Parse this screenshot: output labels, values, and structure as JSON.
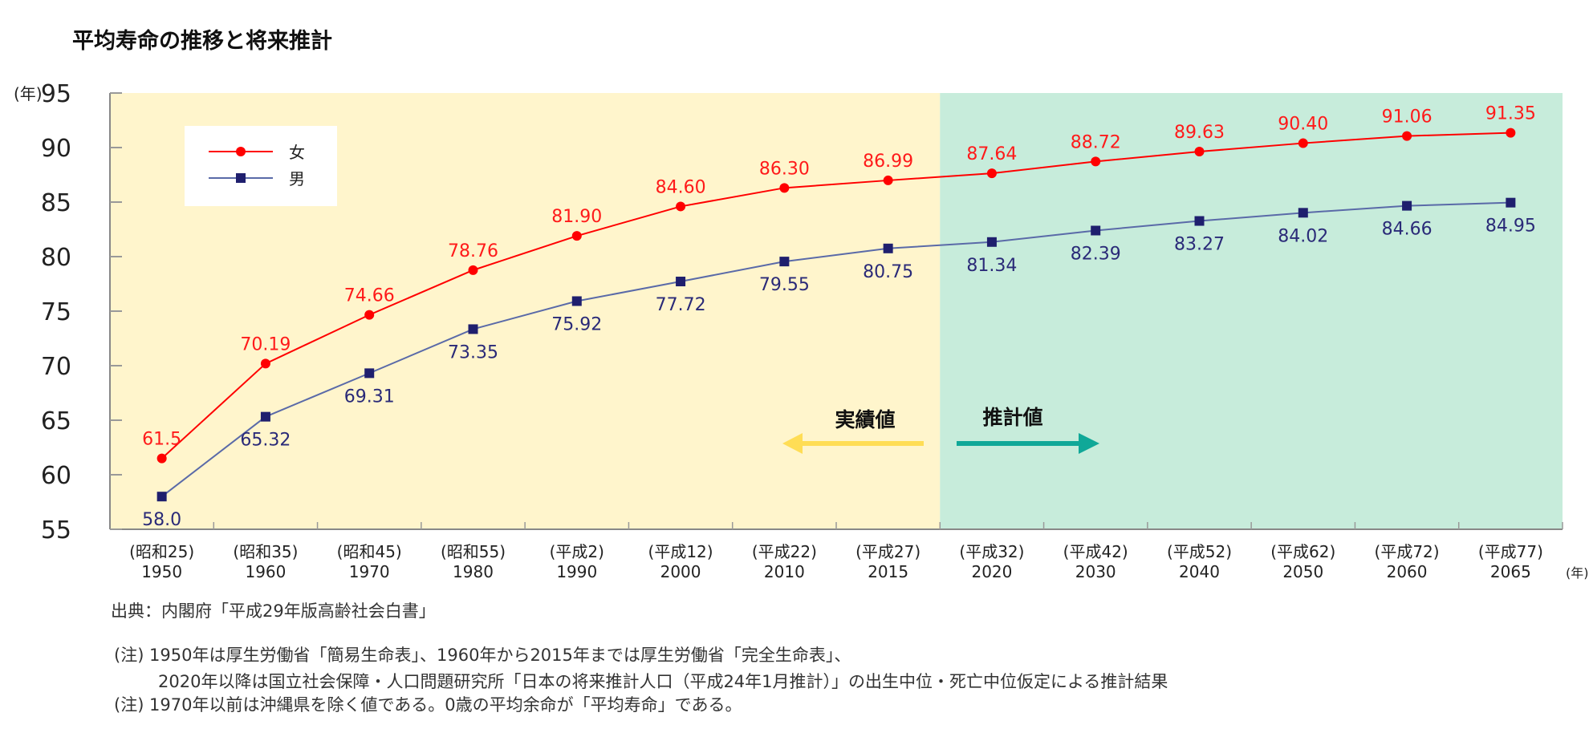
{
  "title": "平均寿命の推移と将来推計",
  "chart_data": {
    "type": "line",
    "title": "平均寿命の推移と将来推計",
    "ylabel": "(年)",
    "xlabel": "(年)",
    "ylim": [
      55,
      95
    ],
    "yticks": [
      "55",
      "60",
      "65",
      "70",
      "75",
      "80",
      "85",
      "90",
      "95"
    ],
    "categories": [
      "1950",
      "1960",
      "1970",
      "1980",
      "1990",
      "2000",
      "2010",
      "2015",
      "2020",
      "2030",
      "2040",
      "2050",
      "2060",
      "2065"
    ],
    "era_labels": [
      "(昭和25)",
      "(昭和35)",
      "(昭和45)",
      "(昭和55)",
      "(平成2)",
      "(平成12)",
      "(平成22)",
      "(平成27)",
      "(平成32)",
      "(平成42)",
      "(平成52)",
      "(平成62)",
      "(平成72)",
      "(平成77)"
    ],
    "legend_position": "top-left",
    "series": [
      {
        "name": "女",
        "color": "#ff0000",
        "marker": "circle",
        "values": [
          61.5,
          70.19,
          74.66,
          78.76,
          81.9,
          84.6,
          86.3,
          86.99,
          87.64,
          88.72,
          89.63,
          90.4,
          91.06,
          91.35
        ],
        "labels": [
          "61.5",
          "70.19",
          "74.66",
          "78.76",
          "81.90",
          "84.60",
          "86.30",
          "86.99",
          "87.64",
          "88.72",
          "89.63",
          "90.40",
          "91.06",
          "91.35"
        ]
      },
      {
        "name": "男",
        "color": "#1f1f6e",
        "line_color": "#5a6aa8",
        "marker": "square",
        "values": [
          58.0,
          65.32,
          69.31,
          73.35,
          75.92,
          77.72,
          79.55,
          80.75,
          81.34,
          82.39,
          83.27,
          84.02,
          84.66,
          84.95
        ],
        "labels": [
          "58.0",
          "65.32",
          "69.31",
          "73.35",
          "75.92",
          "77.72",
          "79.55",
          "80.75",
          "81.34",
          "82.39",
          "83.27",
          "84.02",
          "84.66",
          "84.95"
        ]
      }
    ],
    "regions": [
      {
        "label": "実績値",
        "color": "#fff5cc",
        "arrow_color": "#ffdd55",
        "direction": "left",
        "range": [
          "1950",
          "2015"
        ]
      },
      {
        "label": "推計値",
        "color": "#c7ecdb",
        "arrow_color": "#10a898",
        "direction": "right",
        "range": [
          "2020",
          "2065"
        ]
      }
    ],
    "grid": false
  },
  "source": "出典：内閣府「平成29年版高齢社会白書」",
  "notes": [
    "(注) 1950年は厚生労働省「簡易生命表」、1960年から2015年までは厚生労働省「完全生命表」、",
    "2020年以降は国立社会保障・人口問題研究所「日本の将来推計人口（平成24年1月推計）」の出生中位・死亡中位仮定による推計結果",
    "(注) 1970年以前は沖縄県を除く値である。0歳の平均余命が「平均寿命」である。"
  ]
}
